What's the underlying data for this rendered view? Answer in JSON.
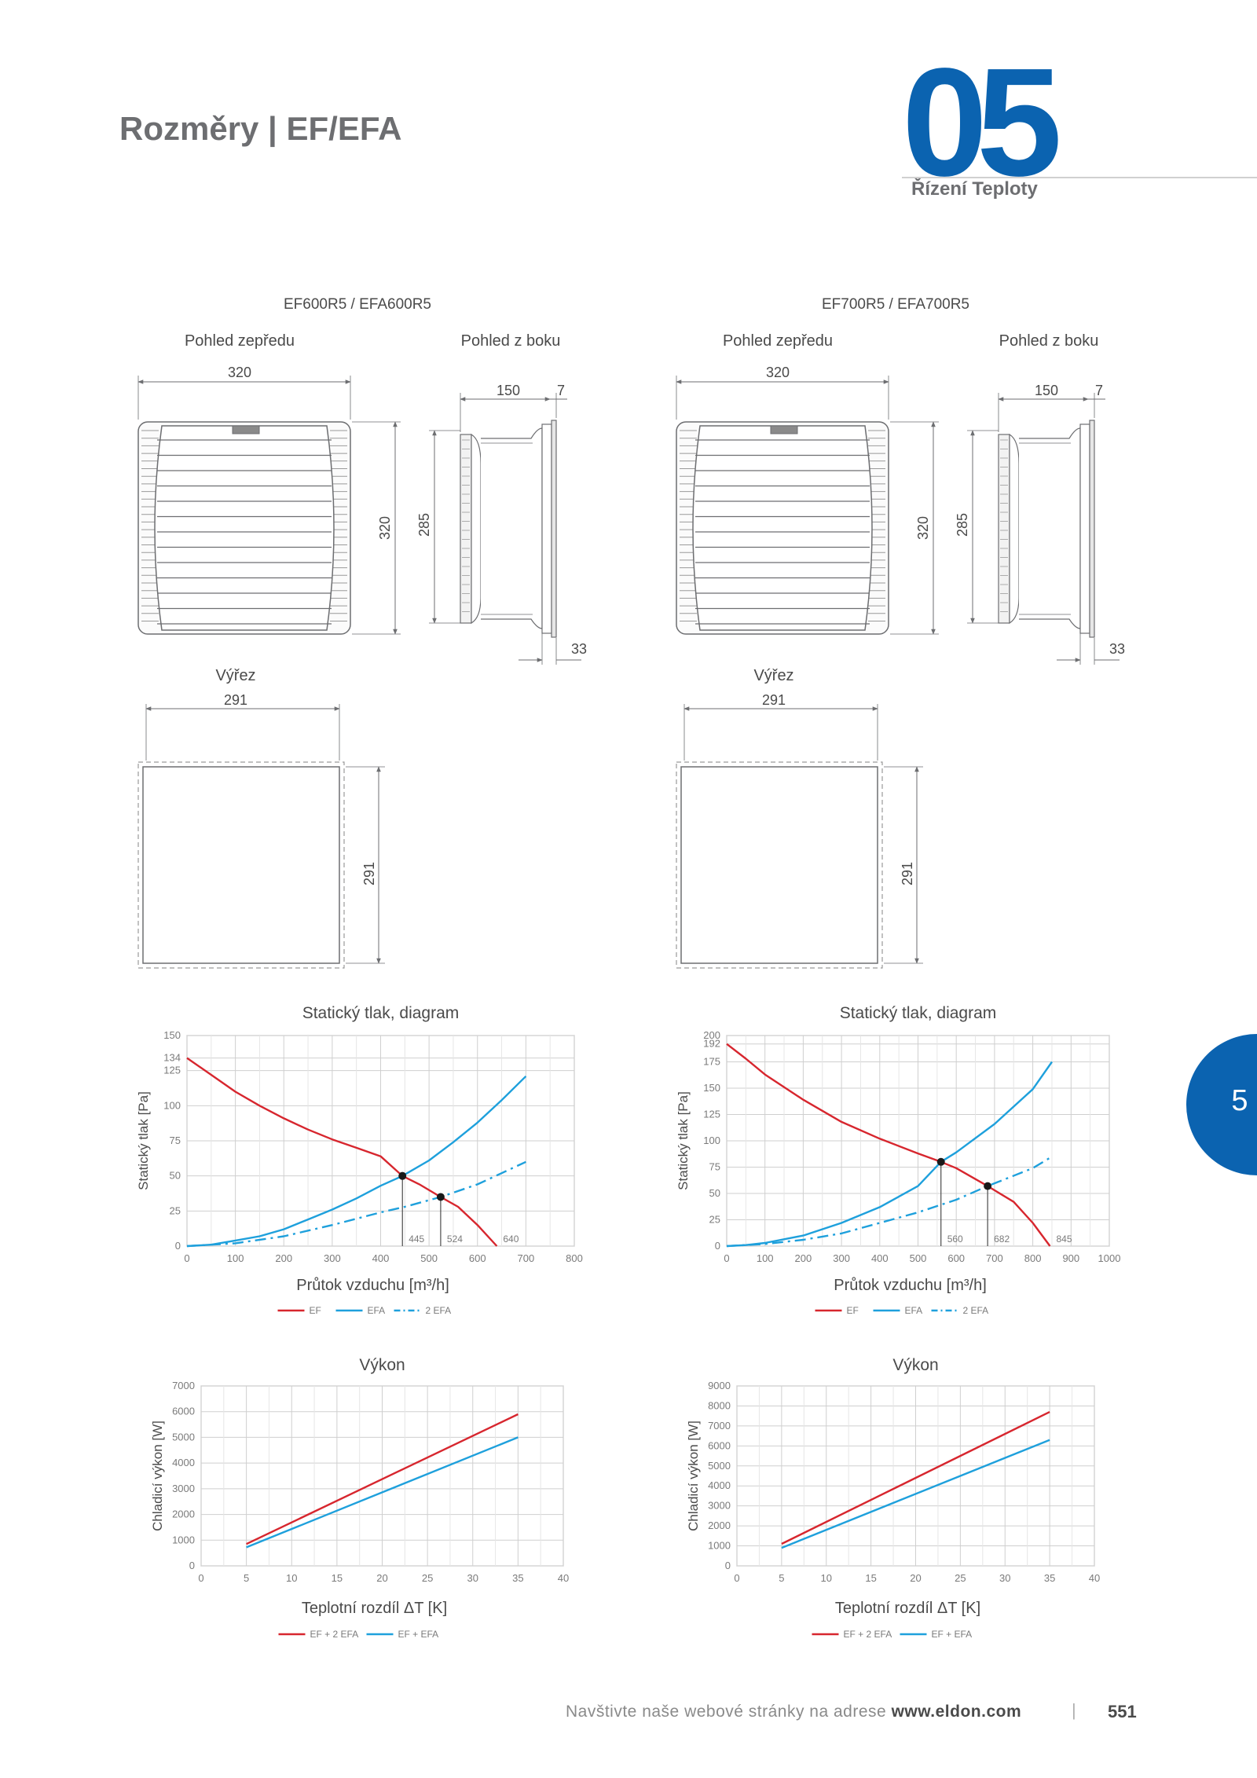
{
  "header": {
    "title": "Rozměry | EF/EFA",
    "section_number": "05",
    "section_name": "Řízení Teploty"
  },
  "side_tab": {
    "number": "5"
  },
  "colors": {
    "accent": "#0b63b0",
    "ef": "#d7262e",
    "efa": "#1ea0dc",
    "grid": "#c8c8c8",
    "drawing": "#6d6e71"
  },
  "products": [
    {
      "model": "EF600R5 / EFA600R5",
      "front_view_label": "Pohled zepředu",
      "side_view_label": "Pohled z boku",
      "cutout_label": "Výřez",
      "dims": {
        "front_width": "320",
        "front_height": "320",
        "side_depth": "150",
        "side_flange": "7",
        "side_height": "285",
        "side_bottom": "33",
        "cutout_width": "291",
        "cutout_height": "291"
      }
    },
    {
      "model": "EF700R5 / EFA700R5",
      "front_view_label": "Pohled zepředu",
      "side_view_label": "Pohled z boku",
      "cutout_label": "Výřez",
      "dims": {
        "front_width": "320",
        "front_height": "320",
        "side_depth": "150",
        "side_flange": "7",
        "side_height": "285",
        "side_bottom": "33",
        "cutout_width": "291",
        "cutout_height": "291"
      }
    }
  ],
  "chart_data": [
    {
      "type": "line",
      "title": "Statický tlak, diagram",
      "xlabel": "Průtok vzduchu [m³/h]",
      "ylabel": "Statický tlak [Pa]",
      "xlim": [
        0,
        800
      ],
      "ylim": [
        0,
        150
      ],
      "x_ticks": [
        "0",
        "100",
        "200",
        "300",
        "400",
        "500",
        "600",
        "700",
        "800"
      ],
      "y_ticks": [
        "0",
        "25",
        "50",
        "75",
        "100",
        "125",
        "134",
        "150"
      ],
      "series": [
        {
          "name": "EF",
          "color": "#d7262e",
          "style": "solid",
          "x": [
            0,
            50,
            100,
            150,
            200,
            250,
            300,
            350,
            400,
            445,
            480,
            524,
            560,
            600,
            640
          ],
          "y": [
            134,
            122,
            110,
            100,
            91,
            83,
            76,
            70,
            64,
            50,
            44,
            35,
            28,
            15,
            0
          ]
        },
        {
          "name": "EFA",
          "color": "#1ea0dc",
          "style": "solid",
          "x": [
            0,
            50,
            100,
            150,
            200,
            250,
            300,
            350,
            400,
            445,
            500,
            550,
            600,
            650,
            700
          ],
          "y": [
            0,
            1,
            4,
            7,
            12,
            19,
            26,
            34,
            43,
            50,
            61,
            74,
            88,
            104,
            121
          ]
        },
        {
          "name": "2 EFA",
          "color": "#1ea0dc",
          "style": "dashdot",
          "x": [
            0,
            100,
            200,
            300,
            400,
            450,
            524,
            600,
            700
          ],
          "y": [
            0,
            2,
            7,
            15,
            24,
            28,
            35,
            44,
            60
          ]
        }
      ],
      "markers": [
        {
          "x": 445,
          "y": 50,
          "label": "445"
        },
        {
          "x": 524,
          "y": 35,
          "label": "524"
        }
      ],
      "annotations": [
        {
          "x": 640,
          "label": "640"
        }
      ],
      "legend": [
        "EF",
        "EFA",
        "2 EFA"
      ],
      "legend_position": "bottom",
      "grid": true
    },
    {
      "type": "line",
      "title": "Statický tlak, diagram",
      "xlabel": "Průtok vzduchu [m³/h]",
      "ylabel": "Statický tlak [Pa]",
      "xlim": [
        0,
        1000
      ],
      "ylim": [
        0,
        200
      ],
      "x_ticks": [
        "0",
        "100",
        "200",
        "300",
        "400",
        "500",
        "600",
        "700",
        "800",
        "900",
        "1000"
      ],
      "y_ticks": [
        "0",
        "25",
        "50",
        "75",
        "100",
        "125",
        "150",
        "175",
        "192",
        "200"
      ],
      "series": [
        {
          "name": "EF",
          "color": "#d7262e",
          "style": "solid",
          "x": [
            0,
            50,
            100,
            200,
            300,
            400,
            500,
            560,
            600,
            682,
            750,
            800,
            845
          ],
          "y": [
            192,
            178,
            163,
            139,
            118,
            102,
            88,
            80,
            74,
            57,
            42,
            22,
            0
          ]
        },
        {
          "name": "EFA",
          "color": "#1ea0dc",
          "style": "solid",
          "x": [
            0,
            50,
            100,
            200,
            300,
            400,
            500,
            560,
            600,
            700,
            800,
            850
          ],
          "y": [
            0,
            1,
            3,
            10,
            22,
            37,
            57,
            80,
            89,
            116,
            149,
            175
          ]
        },
        {
          "name": "2 EFA",
          "color": "#1ea0dc",
          "style": "dashdot",
          "x": [
            0,
            100,
            200,
            300,
            400,
            500,
            600,
            682,
            800,
            850
          ],
          "y": [
            0,
            2,
            6,
            12,
            22,
            32,
            44,
            57,
            74,
            85
          ]
        }
      ],
      "markers": [
        {
          "x": 560,
          "y": 80,
          "label": "560"
        },
        {
          "x": 682,
          "y": 57,
          "label": "682"
        }
      ],
      "annotations": [
        {
          "x": 845,
          "label": "845"
        }
      ],
      "legend": [
        "EF",
        "EFA",
        "2 EFA"
      ],
      "legend_position": "bottom",
      "grid": true
    },
    {
      "type": "line",
      "title": "Výkon",
      "xlabel": "Teplotní rozdíl ΔT [K]",
      "ylabel": "Chladicí výkon [W]",
      "xlim": [
        0,
        40
      ],
      "ylim": [
        0,
        7000
      ],
      "x_ticks": [
        "0",
        "5",
        "10",
        "15",
        "20",
        "25",
        "30",
        "35",
        "40"
      ],
      "y_ticks": [
        "0",
        "1000",
        "2000",
        "3000",
        "4000",
        "5000",
        "6000",
        "7000"
      ],
      "series": [
        {
          "name": "EF + 2 EFA",
          "color": "#d7262e",
          "style": "solid",
          "x": [
            5,
            35
          ],
          "y": [
            850,
            5900
          ]
        },
        {
          "name": "EF + EFA",
          "color": "#1ea0dc",
          "style": "solid",
          "x": [
            5,
            35
          ],
          "y": [
            720,
            5000
          ]
        }
      ],
      "legend": [
        "EF + 2 EFA",
        "EF + EFA"
      ],
      "legend_position": "bottom",
      "grid": true
    },
    {
      "type": "line",
      "title": "Výkon",
      "xlabel": "Teplotní rozdíl ΔT [K]",
      "ylabel": "Chladicí výkon [W]",
      "xlim": [
        0,
        40
      ],
      "ylim": [
        0,
        9000
      ],
      "x_ticks": [
        "0",
        "5",
        "10",
        "15",
        "20",
        "25",
        "30",
        "35",
        "40"
      ],
      "y_ticks": [
        "0",
        "1000",
        "2000",
        "3000",
        "4000",
        "5000",
        "6000",
        "7000",
        "8000",
        "9000"
      ],
      "series": [
        {
          "name": "EF + 2 EFA",
          "color": "#d7262e",
          "style": "solid",
          "x": [
            5,
            35
          ],
          "y": [
            1100,
            7700
          ]
        },
        {
          "name": "EF + EFA",
          "color": "#1ea0dc",
          "style": "solid",
          "x": [
            5,
            35
          ],
          "y": [
            900,
            6300
          ]
        }
      ],
      "legend": [
        "EF + 2 EFA",
        "EF + EFA"
      ],
      "legend_position": "bottom",
      "grid": true
    }
  ],
  "footer": {
    "text": "Navštivte naše webové stránky na adrese",
    "website": "www.eldon.com",
    "separator": "|",
    "page_number": "551"
  }
}
